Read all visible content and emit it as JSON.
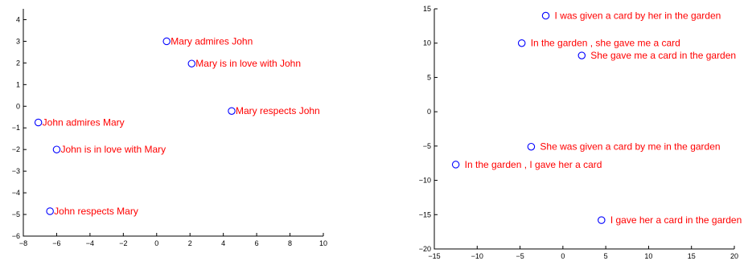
{
  "chart_data": [
    {
      "type": "scatter",
      "xlim": [
        -8,
        10
      ],
      "ylim": [
        -6,
        4.5
      ],
      "xticks": [
        -8,
        -6,
        -4,
        -2,
        0,
        2,
        4,
        6,
        8,
        10
      ],
      "yticks": [
        -6,
        -5,
        -4,
        -3,
        -2,
        -1,
        0,
        1,
        2,
        3,
        4
      ],
      "marker_color": "#0000ff",
      "label_color": "#ff0000",
      "points": [
        {
          "x": 0.6,
          "y": 3.0,
          "label": "Mary admires John"
        },
        {
          "x": 2.1,
          "y": 1.97,
          "label": "Mary is in love with John"
        },
        {
          "x": 4.5,
          "y": -0.22,
          "label": "Mary respects John"
        },
        {
          "x": -7.1,
          "y": -0.75,
          "label": "John admires Mary"
        },
        {
          "x": -6.0,
          "y": -2.0,
          "label": "John is in love with Mary"
        },
        {
          "x": -6.4,
          "y": -4.85,
          "label": "John respects Mary"
        }
      ]
    },
    {
      "type": "scatter",
      "xlim": [
        -15,
        20
      ],
      "ylim": [
        -20,
        15
      ],
      "xticks": [
        -15,
        -10,
        -5,
        0,
        5,
        10,
        15,
        20
      ],
      "yticks": [
        -20,
        -15,
        -10,
        -5,
        0,
        5,
        10,
        15
      ],
      "marker_color": "#0000ff",
      "label_color": "#ff0000",
      "points": [
        {
          "x": -2.0,
          "y": 14.0,
          "label": "I was given a card by her in the garden"
        },
        {
          "x": -4.8,
          "y": 10.0,
          "label": "In the garden , she gave me a card"
        },
        {
          "x": 2.2,
          "y": 8.2,
          "label": "She gave me a card in the garden"
        },
        {
          "x": -3.7,
          "y": -5.1,
          "label": "She was given a card by me in the garden"
        },
        {
          "x": -12.5,
          "y": -7.7,
          "label": "In the garden , I gave her a card"
        },
        {
          "x": 4.5,
          "y": -15.8,
          "label": "I gave her a card in the garden"
        }
      ]
    }
  ]
}
